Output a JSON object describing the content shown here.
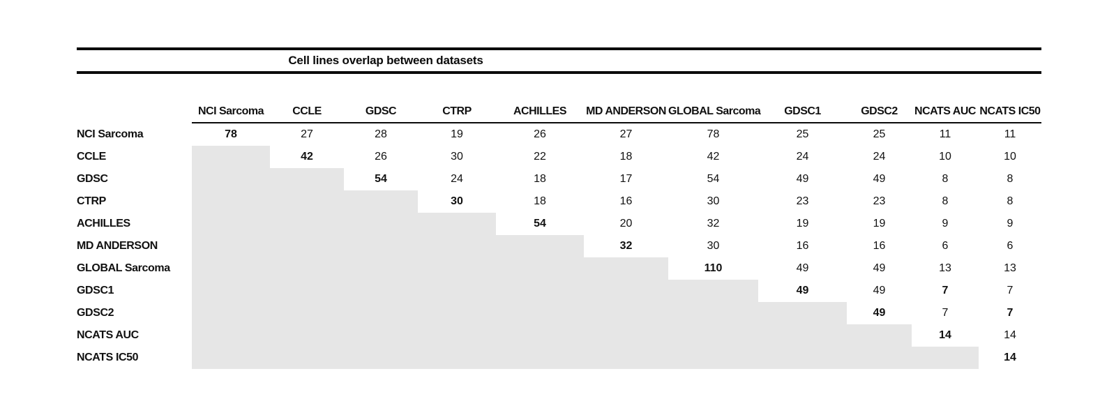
{
  "header": {
    "title": "Cell lines overlap between datasets"
  },
  "chart_data": {
    "type": "table",
    "title": "Cell lines overlap between datasets",
    "datasets": [
      "NCI Sarcoma",
      "CCLE",
      "GDSC",
      "CTRP",
      "ACHILLES",
      "MD ANDERSON",
      "GLOBAL Sarcoma",
      "GDSC1",
      "GDSC2",
      "NCATS AUC",
      "NCATS IC50"
    ],
    "matrix": [
      [
        78,
        27,
        28,
        19,
        26,
        27,
        78,
        25,
        25,
        11,
        11
      ],
      [
        null,
        42,
        26,
        30,
        22,
        18,
        42,
        24,
        24,
        10,
        10
      ],
      [
        null,
        null,
        54,
        24,
        18,
        17,
        54,
        49,
        49,
        8,
        8
      ],
      [
        null,
        null,
        null,
        30,
        18,
        16,
        30,
        23,
        23,
        8,
        8
      ],
      [
        null,
        null,
        null,
        null,
        54,
        20,
        32,
        19,
        19,
        9,
        9
      ],
      [
        null,
        null,
        null,
        null,
        null,
        32,
        30,
        16,
        16,
        6,
        6
      ],
      [
        null,
        null,
        null,
        null,
        null,
        null,
        110,
        49,
        49,
        13,
        13
      ],
      [
        null,
        null,
        null,
        null,
        null,
        null,
        null,
        49,
        49,
        7,
        7
      ],
      [
        null,
        null,
        null,
        null,
        null,
        null,
        null,
        null,
        49,
        7,
        7
      ],
      [
        null,
        null,
        null,
        null,
        null,
        null,
        null,
        null,
        null,
        14,
        14
      ],
      [
        null,
        null,
        null,
        null,
        null,
        null,
        null,
        null,
        null,
        null,
        14
      ]
    ],
    "diagonal_bold": true,
    "extra_bold_cells": [
      [
        7,
        9
      ],
      [
        8,
        10
      ]
    ],
    "shaded_region": "lower-triangle",
    "shade_color": "#e6e6e6",
    "rule_color": "#0b0b0b"
  }
}
